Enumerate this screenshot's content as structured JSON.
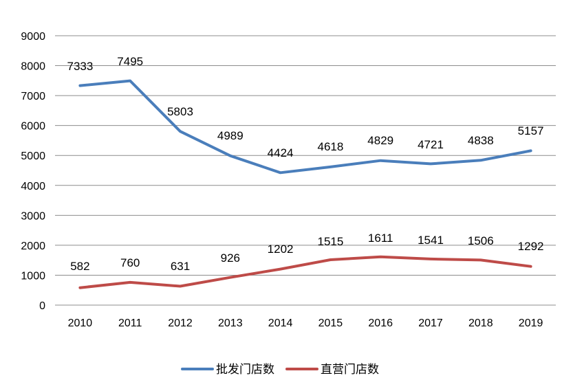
{
  "chart_data": {
    "type": "line",
    "title": "",
    "xlabel": "",
    "ylabel": "",
    "categories": [
      "2010",
      "2011",
      "2012",
      "2013",
      "2014",
      "2015",
      "2016",
      "2017",
      "2018",
      "2019"
    ],
    "ylim": [
      0,
      9000
    ],
    "yticks": [
      0,
      1000,
      2000,
      3000,
      4000,
      5000,
      6000,
      7000,
      8000,
      9000
    ],
    "grid": true,
    "legend": "bottom",
    "series": [
      {
        "name": "批发门店数",
        "color": "#4a7ebb",
        "values": [
          7333,
          7495,
          5803,
          4989,
          4424,
          4618,
          4829,
          4721,
          4838,
          5157
        ]
      },
      {
        "name": "直营门店数",
        "color": "#be4b48",
        "values": [
          582,
          760,
          631,
          926,
          1202,
          1515,
          1611,
          1541,
          1506,
          1292
        ]
      }
    ]
  }
}
